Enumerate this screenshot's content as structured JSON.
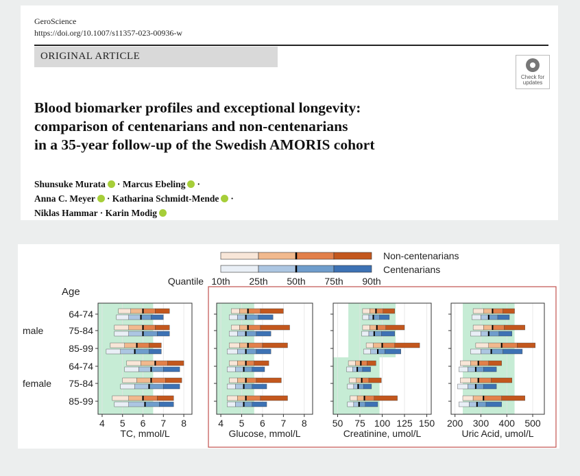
{
  "header": {
    "journal": "GeroScience",
    "doi": "https://doi.org/10.1007/s11357-023-00936-w",
    "article_type": "ORIGINAL ARTICLE",
    "badge_line1": "Check for",
    "badge_line2": "updates",
    "title_lines": [
      "Blood biomarker profiles and exceptional longevity:",
      "comparison of centenarians and non-centenarians",
      "in a 35-year follow-up of the Swedish AMORIS cohort"
    ],
    "author_lines": [
      [
        "Shunsuke Murata",
        "Marcus Ebeling"
      ],
      [
        "Anna C. Meyer",
        "Katharina Schmidt-Mende"
      ],
      [
        "Niklas Hammar",
        "Karin Modig"
      ]
    ],
    "separator": "·"
  },
  "figure": {
    "legend": {
      "series": [
        "Non-centenarians",
        "Centenarians"
      ],
      "quantile_label": "Quantile",
      "quantiles": [
        "10th",
        "25th",
        "50th",
        "75th",
        "90th"
      ]
    },
    "age_header": "Age",
    "sex_labels": [
      "male",
      "female"
    ],
    "row_labels": [
      "64-74",
      "75-84",
      "85-99",
      "64-74",
      "75-84",
      "85-99"
    ],
    "colors": {
      "non_centenarian": [
        "#f8e6d8",
        "#f1b98e",
        "#e2804a",
        "#c3571d"
      ],
      "centenarian": [
        "#e9eff6",
        "#acc6e2",
        "#6f9dcc",
        "#3d72b4"
      ],
      "reference_band": "#c6ecd5",
      "highlight_border": "#c0504d"
    }
  },
  "chart_data": [
    {
      "type": "bar",
      "subtype": "quantile-range",
      "xlabel": "TC, mmol/L",
      "xlim": [
        3.8,
        8.4
      ],
      "xticks": [
        4,
        5,
        6,
        7,
        8
      ],
      "reference_band": [
        3.8,
        6.5
      ],
      "rows": [
        {
          "sex": "male",
          "age": "64-74",
          "non_centenarians": [
            4.8,
            5.4,
            6.0,
            6.6,
            7.3
          ],
          "centenarians": [
            4.7,
            5.3,
            5.9,
            6.4,
            7.0
          ]
        },
        {
          "sex": "male",
          "age": "75-84",
          "non_centenarians": [
            4.6,
            5.3,
            6.0,
            6.6,
            7.3
          ],
          "centenarians": [
            4.6,
            5.3,
            6.0,
            6.7,
            7.3
          ]
        },
        {
          "sex": "male",
          "age": "85-99",
          "non_centenarians": [
            4.4,
            5.1,
            5.7,
            6.3,
            6.9
          ],
          "centenarians": [
            4.2,
            4.9,
            5.6,
            6.3,
            6.9
          ]
        },
        {
          "sex": "female",
          "age": "64-74",
          "non_centenarians": [
            5.2,
            5.9,
            6.6,
            7.2,
            8.0
          ],
          "centenarians": [
            5.1,
            5.8,
            6.4,
            7.0,
            7.8
          ]
        },
        {
          "sex": "female",
          "age": "75-84",
          "non_centenarians": [
            5.0,
            5.7,
            6.4,
            7.1,
            7.9
          ],
          "centenarians": [
            4.9,
            5.6,
            6.3,
            7.0,
            7.8
          ]
        },
        {
          "sex": "female",
          "age": "85-99",
          "non_centenarians": [
            4.5,
            5.3,
            6.0,
            6.7,
            7.5
          ],
          "centenarians": [
            4.6,
            5.3,
            6.1,
            6.8,
            7.5
          ]
        }
      ]
    },
    {
      "type": "bar",
      "subtype": "quantile-range",
      "xlabel": "Glucose, mmol/L",
      "xlim": [
        3.8,
        8.4
      ],
      "xticks": [
        4,
        5,
        6,
        7,
        8
      ],
      "reference_band": [
        3.8,
        5.6
      ],
      "rows": [
        {
          "sex": "male",
          "age": "64-74",
          "non_centenarians": [
            4.5,
            4.9,
            5.3,
            5.9,
            7.0
          ],
          "centenarians": [
            4.4,
            4.8,
            5.2,
            5.8,
            6.5
          ]
        },
        {
          "sex": "male",
          "age": "75-84",
          "non_centenarians": [
            4.5,
            4.9,
            5.3,
            5.9,
            7.3
          ],
          "centenarians": [
            4.4,
            4.8,
            5.2,
            5.7,
            6.4
          ]
        },
        {
          "sex": "male",
          "age": "85-99",
          "non_centenarians": [
            4.4,
            4.9,
            5.3,
            6.0,
            7.2
          ],
          "centenarians": [
            4.3,
            4.8,
            5.2,
            5.7,
            6.4
          ]
        },
        {
          "sex": "female",
          "age": "64-74",
          "non_centenarians": [
            4.4,
            4.8,
            5.2,
            5.6,
            6.3
          ],
          "centenarians": [
            4.3,
            4.7,
            5.1,
            5.5,
            6.1
          ]
        },
        {
          "sex": "female",
          "age": "75-84",
          "non_centenarians": [
            4.4,
            4.8,
            5.2,
            5.7,
            6.9
          ],
          "centenarians": [
            4.3,
            4.7,
            5.1,
            5.5,
            6.2
          ]
        },
        {
          "sex": "female",
          "age": "85-99",
          "non_centenarians": [
            4.3,
            4.8,
            5.2,
            5.9,
            7.2
          ],
          "centenarians": [
            4.3,
            4.7,
            5.1,
            5.5,
            6.2
          ]
        }
      ]
    },
    {
      "type": "bar",
      "subtype": "quantile-range",
      "xlabel": "Creatinine, umol/L",
      "xlim": [
        45,
        155
      ],
      "xticks": [
        50,
        75,
        100,
        125,
        150
      ],
      "reference_band_rows": [
        {
          "rows": [
            "male"
          ],
          "range": [
            62,
            115
          ]
        },
        {
          "rows": [
            "female"
          ],
          "range": [
            45,
            97
          ]
        }
      ],
      "rows": [
        {
          "sex": "male",
          "age": "64-74",
          "non_centenarians": [
            78,
            86,
            93,
            101,
            114
          ],
          "centenarians": [
            78,
            85,
            90,
            97,
            108
          ]
        },
        {
          "sex": "male",
          "age": "75-84",
          "non_centenarians": [
            78,
            86,
            94,
            104,
            125
          ],
          "centenarians": [
            77,
            85,
            91,
            99,
            114
          ]
        },
        {
          "sex": "male",
          "age": "85-99",
          "non_centenarians": [
            82,
            90,
            100,
            114,
            142
          ],
          "centenarians": [
            79,
            87,
            95,
            103,
            121
          ]
        },
        {
          "sex": "female",
          "age": "64-74",
          "non_centenarians": [
            62,
            70,
            76,
            83,
            93
          ],
          "centenarians": [
            60,
            67,
            72,
            78,
            87
          ]
        },
        {
          "sex": "female",
          "age": "75-84",
          "non_centenarians": [
            63,
            71,
            77,
            85,
            99
          ],
          "centenarians": [
            61,
            68,
            73,
            79,
            88
          ]
        },
        {
          "sex": "female",
          "age": "85-99",
          "non_centenarians": [
            64,
            72,
            80,
            91,
            117
          ],
          "centenarians": [
            61,
            68,
            74,
            81,
            95
          ]
        }
      ]
    },
    {
      "type": "bar",
      "subtype": "quantile-range",
      "xlabel": "Uric Acid, umol/L",
      "xlim": [
        185,
        545
      ],
      "xticks": [
        200,
        300,
        400,
        500
      ],
      "reference_band": [
        230,
        430
      ],
      "rows": [
        {
          "sex": "male",
          "age": "64-74",
          "non_centenarians": [
            270,
            310,
            345,
            385,
            430
          ],
          "centenarians": [
            265,
            300,
            330,
            365,
            410
          ]
        },
        {
          "sex": "male",
          "age": "75-84",
          "non_centenarians": [
            270,
            310,
            345,
            390,
            470
          ],
          "centenarians": [
            260,
            300,
            330,
            370,
            420
          ]
        },
        {
          "sex": "male",
          "age": "85-99",
          "non_centenarians": [
            280,
            330,
            380,
            440,
            510
          ],
          "centenarians": [
            260,
            300,
            340,
            385,
            460
          ]
        },
        {
          "sex": "female",
          "age": "64-74",
          "non_centenarians": [
            220,
            260,
            290,
            330,
            380
          ],
          "centenarians": [
            215,
            250,
            280,
            310,
            360
          ]
        },
        {
          "sex": "female",
          "age": "75-84",
          "non_centenarians": [
            220,
            260,
            290,
            340,
            420
          ],
          "centenarians": [
            210,
            250,
            280,
            310,
            360
          ]
        },
        {
          "sex": "female",
          "age": "85-99",
          "non_centenarians": [
            230,
            270,
            310,
            380,
            470
          ],
          "centenarians": [
            215,
            255,
            285,
            320,
            380
          ]
        }
      ]
    }
  ]
}
